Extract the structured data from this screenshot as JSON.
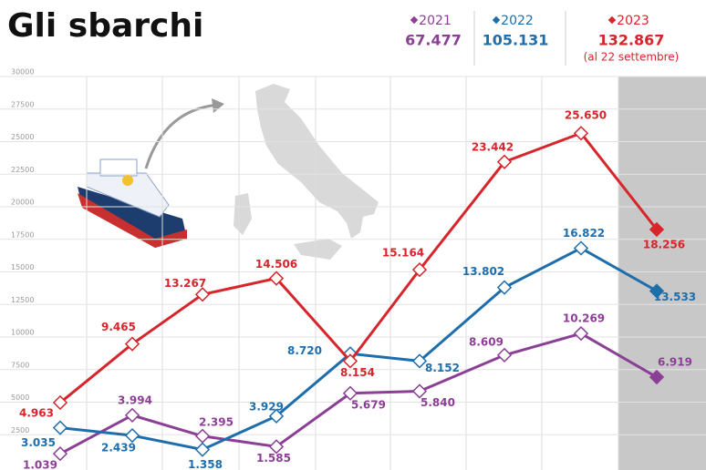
{
  "chart_data": {
    "type": "line",
    "title": "Gli sbarchi",
    "categories": [
      null,
      null,
      null,
      null,
      null,
      null,
      null,
      null,
      null
    ],
    "series": [
      {
        "name": "2021",
        "color": "#8b3f95",
        "total": "67.477",
        "values": [
          1039,
          3994,
          2395,
          1585,
          5679,
          5840,
          8609,
          10269,
          6919
        ],
        "value_labels": [
          "1.039",
          "3.994",
          "2.395",
          "1.585",
          "5.679",
          "5.840",
          "8.609",
          "10.269",
          "6.919"
        ]
      },
      {
        "name": "2022",
        "color": "#1f6eac",
        "total": "105.131",
        "values": [
          3035,
          2439,
          1358,
          3929,
          8720,
          8152,
          13802,
          16822,
          13533
        ],
        "value_labels": [
          "3.035",
          "2.439",
          "1.358",
          "3.929",
          "8.720",
          "8.152",
          "13.802",
          "16.822",
          "13.533"
        ]
      },
      {
        "name": "2023",
        "color": "#d7252b",
        "total": "132.867",
        "note": "(al 22 settembre)",
        "values": [
          4963,
          9465,
          13267,
          14506,
          8154,
          15164,
          23442,
          25650,
          18256
        ],
        "value_labels": [
          "4.963",
          "9.465",
          "13.267",
          "14.506",
          "8.154",
          "15.164",
          "23.442",
          "25.650",
          "18.256"
        ]
      }
    ],
    "ylim": [
      0,
      30000
    ],
    "yticks": [
      2500,
      5000,
      7500,
      10000,
      12500,
      15000,
      17500,
      20000,
      22500,
      25000,
      27500,
      30000
    ],
    "grid": true
  }
}
